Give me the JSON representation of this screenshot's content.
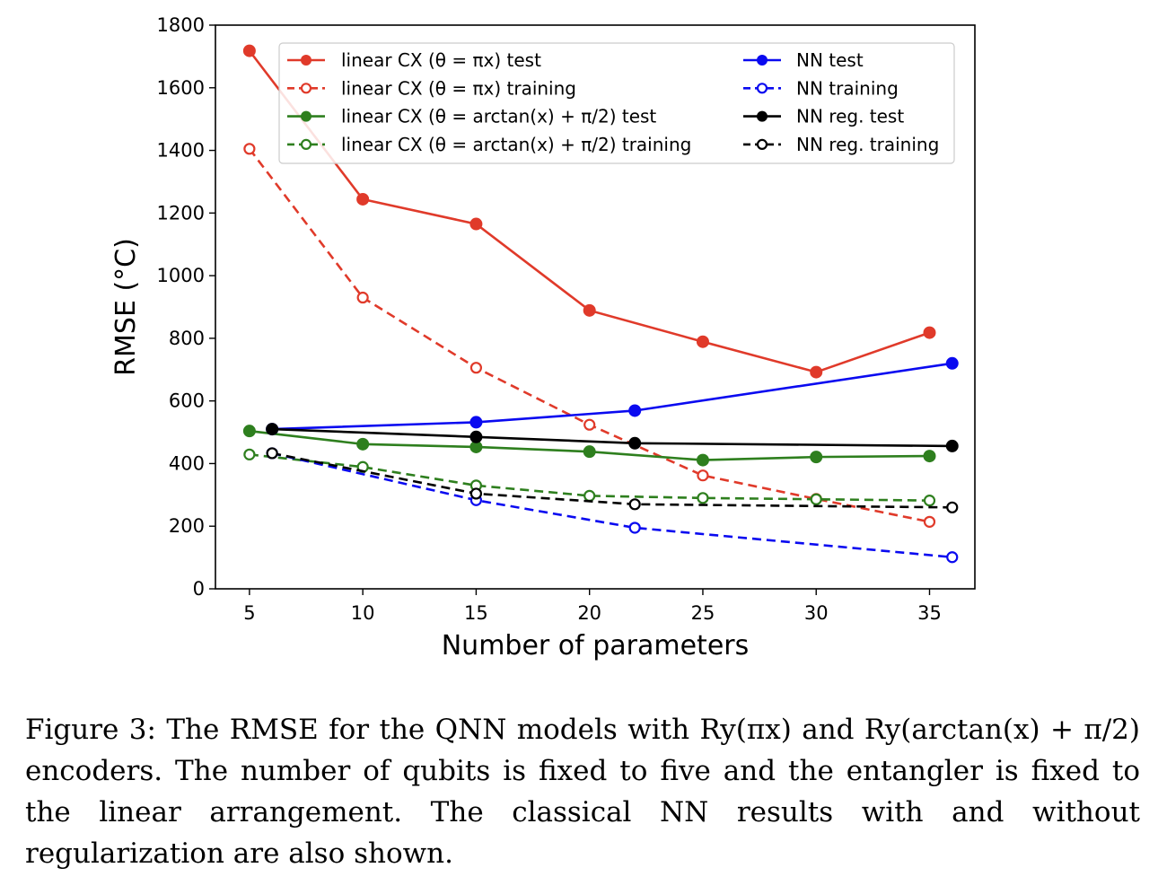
{
  "chart_data": {
    "type": "line",
    "xlabel": "Number of parameters",
    "ylabel": "RMSE (°C)",
    "xlim": [
      3.5,
      37.0
    ],
    "ylim": [
      0,
      1800
    ],
    "xticks": [
      5,
      10,
      15,
      20,
      25,
      30,
      35
    ],
    "yticks": [
      0,
      200,
      400,
      600,
      800,
      1000,
      1200,
      1400,
      1600,
      1800
    ],
    "legend_position": "top",
    "series": [
      {
        "name": "linear CX (θ = πx) test",
        "color": "#e03a2a",
        "style": "solid",
        "marker": "filled",
        "x": [
          5,
          10,
          15,
          20,
          25,
          30,
          35
        ],
        "y": [
          1718,
          1244,
          1165,
          889,
          789,
          692,
          818
        ]
      },
      {
        "name": "linear CX (θ = πx) training",
        "color": "#e03a2a",
        "style": "dashed",
        "marker": "open",
        "x": [
          5,
          10,
          15,
          20,
          25,
          30,
          35
        ],
        "y": [
          1405,
          930,
          706,
          524,
          362,
          287,
          214
        ]
      },
      {
        "name": "linear CX (θ = arctan(x) + π/2) test",
        "color": "#2e7f1e",
        "style": "solid",
        "marker": "filled",
        "x": [
          5,
          10,
          15,
          20,
          25,
          30,
          35
        ],
        "y": [
          504,
          462,
          453,
          438,
          411,
          421,
          424
        ]
      },
      {
        "name": "linear CX (θ = arctan(x) + π/2) training",
        "color": "#2e7f1e",
        "style": "dashed",
        "marker": "open",
        "x": [
          5,
          10,
          15,
          20,
          25,
          30,
          35
        ],
        "y": [
          429,
          389,
          330,
          297,
          290,
          286,
          282
        ]
      },
      {
        "name": "NN test",
        "color": "#0a0af0",
        "style": "solid",
        "marker": "filled",
        "x": [
          6,
          15,
          22,
          36
        ],
        "y": [
          510,
          532,
          569,
          720
        ]
      },
      {
        "name": "NN training",
        "color": "#0a0af0",
        "style": "dashed",
        "marker": "open",
        "x": [
          6,
          15,
          22,
          36
        ],
        "y": [
          433,
          283,
          195,
          101
        ]
      },
      {
        "name": "NN reg. test",
        "color": "#000000",
        "style": "solid",
        "marker": "filled",
        "x": [
          6,
          15,
          22,
          36
        ],
        "y": [
          510,
          485,
          465,
          456
        ]
      },
      {
        "name": "NN reg. training",
        "color": "#000000",
        "style": "dashed",
        "marker": "open",
        "x": [
          6,
          15,
          22,
          36
        ],
        "y": [
          433,
          304,
          270,
          260
        ]
      }
    ]
  },
  "caption": {
    "text": "Figure 3: The RMSE for the QNN models with Ry(πx) and Ry(arctan(x) + π/2) encoders. The number of qubits is fixed to five and the entangler is fixed to the linear arrangement. The classical NN results with and without regularization are also shown."
  }
}
